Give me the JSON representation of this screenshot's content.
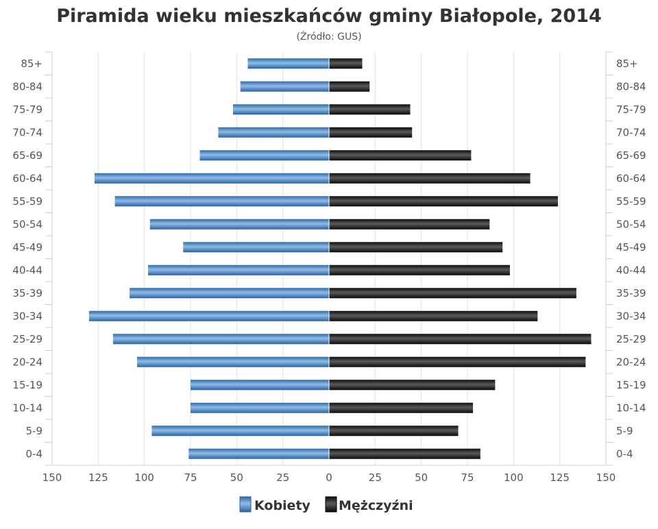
{
  "chart_data": {
    "type": "bar",
    "orientation": "horizontal",
    "title": "Piramida wieku mieszkańców gminy Białopole, 2014",
    "subtitle": "(Źródło: GUS)",
    "categories": [
      "85+",
      "80-84",
      "75-79",
      "70-74",
      "65-69",
      "60-64",
      "55-59",
      "50-54",
      "45-49",
      "40-44",
      "35-39",
      "30-34",
      "25-29",
      "20-24",
      "15-19",
      "10-14",
      "5-9",
      "0-4"
    ],
    "series": [
      {
        "name": "Kobiety",
        "color": "#3d7dc0",
        "values": [
          44,
          48,
          52,
          60,
          70,
          127,
          116,
          97,
          79,
          98,
          108,
          130,
          117,
          104,
          75,
          75,
          96,
          76
        ]
      },
      {
        "name": "Mężczyźni",
        "color": "#1a1a1a",
        "values": [
          18,
          22,
          44,
          45,
          77,
          109,
          124,
          87,
          94,
          98,
          134,
          113,
          142,
          139,
          90,
          78,
          70,
          82
        ]
      }
    ],
    "xlim": [
      -150,
      150
    ],
    "x_ticks": [
      "150",
      "125",
      "100",
      "75",
      "50",
      "25",
      "0",
      "25",
      "50",
      "75",
      "100",
      "125",
      "150"
    ],
    "grid": true,
    "legend_position": "bottom"
  }
}
